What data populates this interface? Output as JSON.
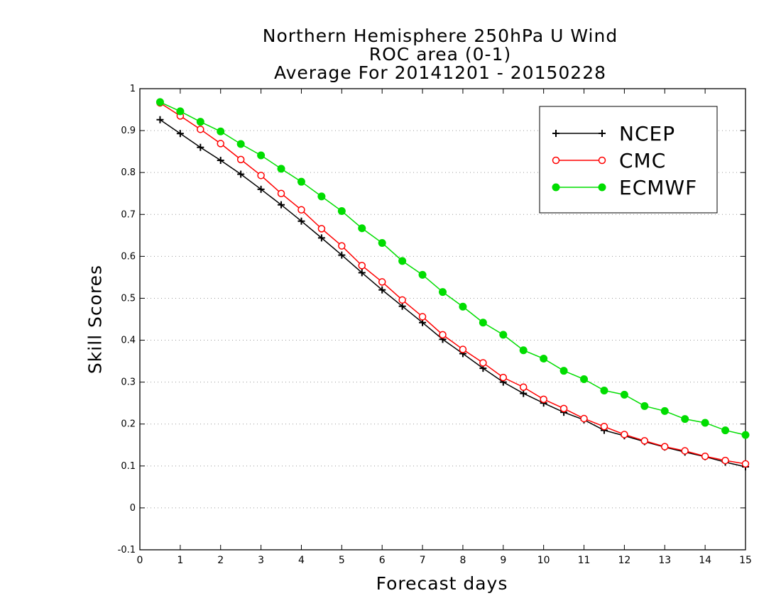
{
  "chart_data": {
    "type": "line",
    "title": [
      "Northern Hemisphere 250hPa U Wind",
      "ROC area (0-1)",
      "Average For 20141201 - 20150228"
    ],
    "xlabel": "Forecast days",
    "ylabel": "Skill Scores",
    "xlim": [
      0,
      15
    ],
    "ylim": [
      -0.1,
      1
    ],
    "xticks": [
      "0",
      "1",
      "2",
      "3",
      "4",
      "5",
      "6",
      "7",
      "8",
      "9",
      "10",
      "11",
      "12",
      "13",
      "14",
      "15"
    ],
    "yticks": [
      "-0.1",
      "0",
      "0.1",
      "0.2",
      "0.3",
      "0.4",
      "0.5",
      "0.6",
      "0.7",
      "0.8",
      "0.9",
      "1"
    ],
    "grid": "horizontal dotted",
    "legend_position": "top-right",
    "x": [
      0.5,
      1,
      1.5,
      2,
      2.5,
      3,
      3.5,
      4,
      4.5,
      5,
      5.5,
      6,
      6.5,
      7,
      7.5,
      8,
      8.5,
      9,
      9.5,
      10,
      10.5,
      11,
      11.5,
      12,
      12.5,
      13,
      13.5,
      14,
      14.5,
      15
    ],
    "series": [
      {
        "name": "NCEP",
        "color": "#000000",
        "marker": "plus",
        "values": [
          0.926,
          0.893,
          0.86,
          0.829,
          0.796,
          0.76,
          0.723,
          0.684,
          0.644,
          0.603,
          0.561,
          0.52,
          0.481,
          0.442,
          0.402,
          0.368,
          0.333,
          0.3,
          0.273,
          0.25,
          0.228,
          0.21,
          0.185,
          0.172,
          0.158,
          0.145,
          0.133,
          0.122,
          0.109,
          0.098
        ]
      },
      {
        "name": "CMC",
        "color": "#ff0000",
        "marker": "open-circle",
        "values": [
          0.966,
          0.935,
          0.903,
          0.869,
          0.831,
          0.793,
          0.75,
          0.711,
          0.666,
          0.625,
          0.578,
          0.539,
          0.496,
          0.456,
          0.413,
          0.378,
          0.346,
          0.311,
          0.288,
          0.259,
          0.237,
          0.213,
          0.194,
          0.175,
          0.16,
          0.146,
          0.136,
          0.123,
          0.113,
          0.105
        ]
      },
      {
        "name": "ECMWF",
        "color": "#00dd00",
        "marker": "filled-circle",
        "values": [
          0.968,
          0.946,
          0.921,
          0.898,
          0.868,
          0.841,
          0.809,
          0.778,
          0.743,
          0.708,
          0.667,
          0.632,
          0.589,
          0.556,
          0.515,
          0.48,
          0.442,
          0.413,
          0.376,
          0.356,
          0.327,
          0.307,
          0.28,
          0.27,
          0.243,
          0.231,
          0.212,
          0.203,
          0.185,
          0.174
        ]
      }
    ]
  }
}
